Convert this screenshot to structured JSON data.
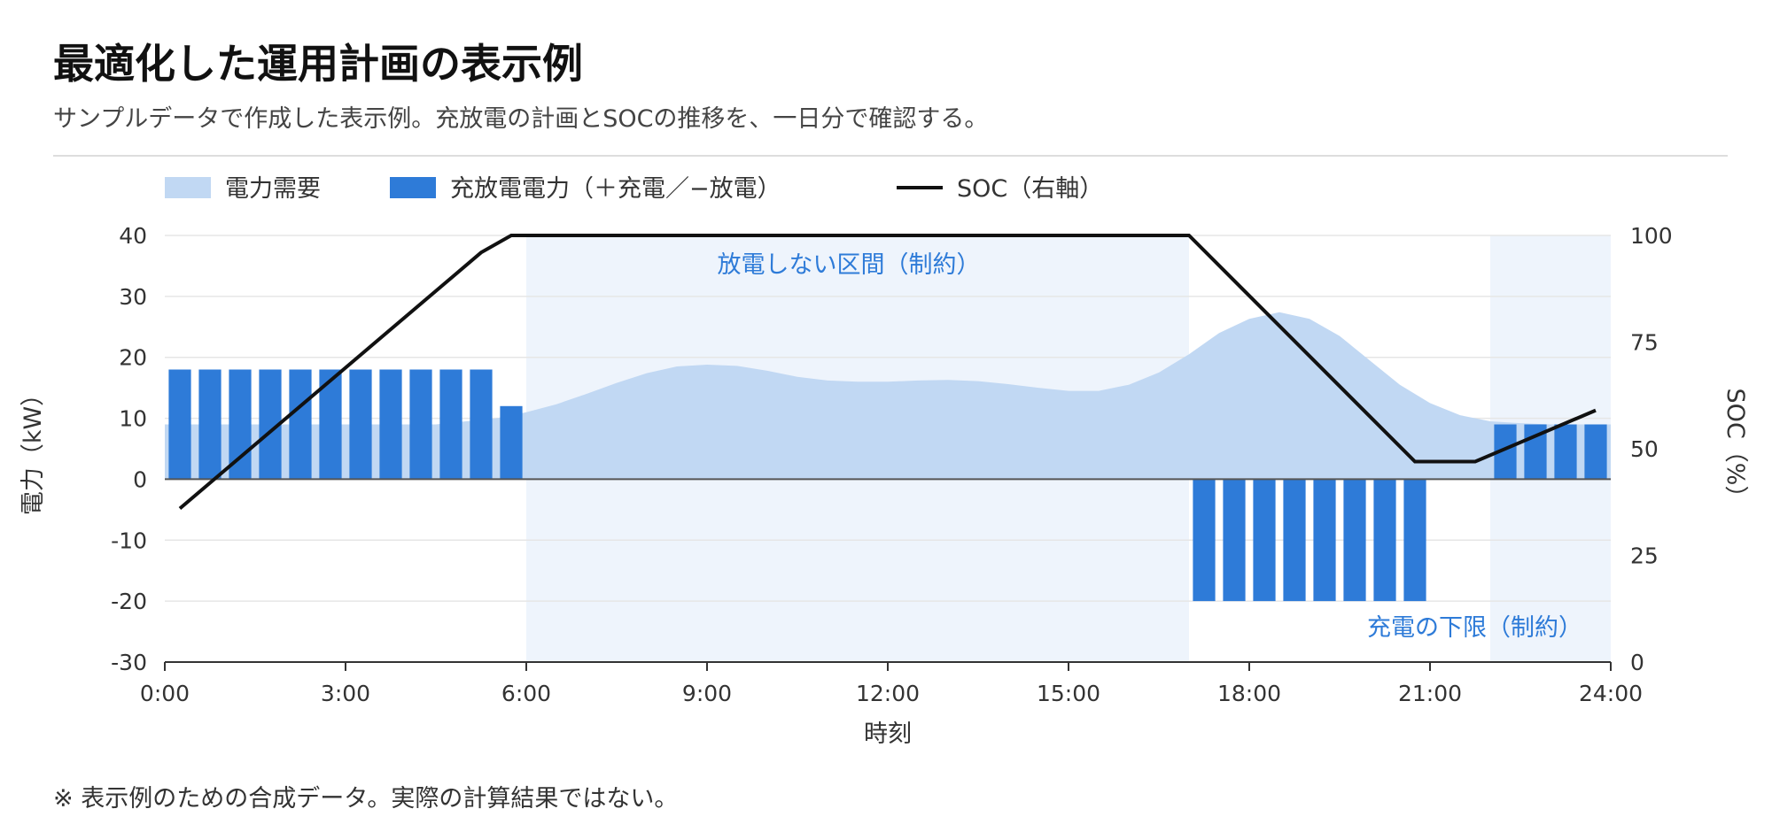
{
  "header": {
    "title": "最適化した運用計画の表示例",
    "subtitle": "サンプルデータで作成した表示例。充放電の計画とSOCの推移を、一日分で確認する。"
  },
  "footnote": "※ 表示例のための合成データ。実際の計算結果ではない。",
  "colors": {
    "demand": "#c1d8f3",
    "charge": "#2e7bd8",
    "soc": "#111111",
    "shade": "#eef4fc",
    "annotation": "#2e7bd8"
  },
  "chart_data": {
    "type": "bar",
    "xlabel": "時刻",
    "ylabel_left": "電力（kW）",
    "ylabel_right": "SOC（%）",
    "x_ticks": [
      "0:00",
      "3:00",
      "6:00",
      "9:00",
      "12:00",
      "15:00",
      "18:00",
      "21:00",
      "24:00"
    ],
    "y_left_ticks": [
      "40",
      "30",
      "20",
      "10",
      "0",
      "-10",
      "-20",
      "-30"
    ],
    "y_right_ticks": [
      "100",
      "75",
      "50",
      "25",
      "0"
    ],
    "ylim_left": [
      -30,
      40
    ],
    "ylim_right": [
      0,
      100
    ],
    "xlim_hours": [
      0,
      24
    ],
    "grid": true,
    "legend_position": "top-left",
    "legend": {
      "demand": "電力需要",
      "charge": "充放電電力（＋充電／−放電）",
      "soc": "SOC（右軸）"
    },
    "series": [
      {
        "name": "電力需要",
        "type": "area",
        "x": [
          0,
          0.5,
          1,
          1.5,
          2,
          2.5,
          3,
          3.5,
          4,
          4.5,
          5,
          5.5,
          6,
          6.5,
          7,
          7.5,
          8,
          8.5,
          9,
          9.5,
          10,
          10.5,
          11,
          11.5,
          12,
          12.5,
          13,
          13.5,
          14,
          14.5,
          15,
          15.5,
          16,
          16.5,
          17,
          17.5,
          18,
          18.5,
          19,
          19.5,
          20,
          20.5,
          21,
          21.5,
          22,
          22.5,
          23,
          23.5,
          24
        ],
        "values": [
          9,
          9,
          9,
          9,
          9,
          9,
          9,
          9,
          9,
          9,
          9.5,
          10,
          11,
          12.3,
          14,
          15.8,
          17.4,
          18.5,
          18.8,
          18.6,
          17.8,
          16.8,
          16.2,
          16,
          16,
          16.2,
          16.3,
          16.1,
          15.6,
          15,
          14.5,
          14.5,
          15.5,
          17.5,
          20.5,
          24,
          26.3,
          27.4,
          26.3,
          23.5,
          19.5,
          15.5,
          12.5,
          10.5,
          9.5,
          9.2,
          9,
          9,
          9
        ]
      },
      {
        "name": "充放電電力（＋充電／−放電）",
        "type": "bar",
        "x": [
          0.25,
          0.75,
          1.25,
          1.75,
          2.25,
          2.75,
          3.25,
          3.75,
          4.25,
          4.75,
          5.25,
          5.75,
          17.25,
          17.75,
          18.25,
          18.75,
          19.25,
          19.75,
          20.25,
          20.75,
          22.25,
          22.75,
          23.25,
          23.75
        ],
        "values": [
          18,
          18,
          18,
          18,
          18,
          18,
          18,
          18,
          18,
          18,
          18,
          12,
          -20,
          -20,
          -20,
          -20,
          -20,
          -20,
          -20,
          -20,
          9,
          9,
          9,
          9
        ]
      },
      {
        "name": "SOC（右軸）",
        "type": "line",
        "axis": "right",
        "x": [
          0.25,
          5.25,
          5.75,
          17,
          20.75,
          21.75,
          23.75
        ],
        "values": [
          36,
          96,
          100,
          100,
          47,
          47,
          59
        ]
      }
    ],
    "shaded_regions": [
      {
        "x": [
          6,
          17
        ],
        "label": "放電しない区間（制約）"
      },
      {
        "x": [
          22,
          24
        ],
        "label": "充電の下限（制約）"
      }
    ]
  }
}
